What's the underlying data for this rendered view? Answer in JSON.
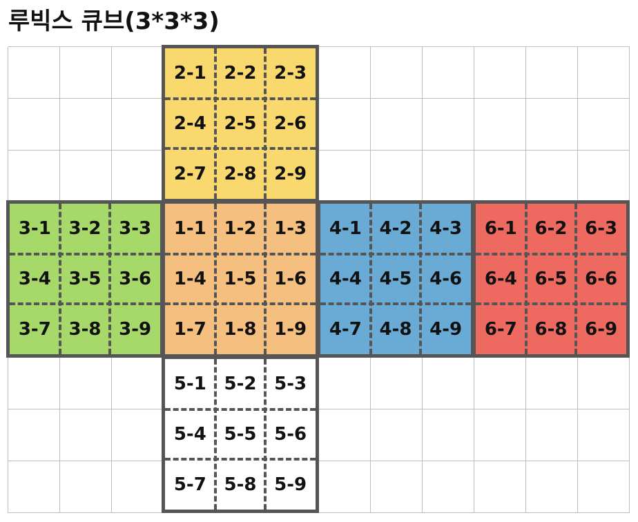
{
  "title": "루빅스 큐브(3*3*3)",
  "colors": {
    "grid_line": "#bdbdbd",
    "face_border": "#555555",
    "face_1": "#f5c07f",
    "face_2": "#f9d86e",
    "face_3": "#a7d86a",
    "face_4": "#6aabd6",
    "face_5": "#ffffff",
    "face_6": "#ee6a61"
  },
  "faces": [
    {
      "id": 2,
      "color_key": "face_2",
      "labels": [
        "2-1",
        "2-2",
        "2-3",
        "2-4",
        "2-5",
        "2-6",
        "2-7",
        "2-8",
        "2-9"
      ]
    },
    {
      "id": 3,
      "color_key": "face_3",
      "labels": [
        "3-1",
        "3-2",
        "3-3",
        "3-4",
        "3-5",
        "3-6",
        "3-7",
        "3-8",
        "3-9"
      ]
    },
    {
      "id": 1,
      "color_key": "face_1",
      "labels": [
        "1-1",
        "1-2",
        "1-3",
        "1-4",
        "1-5",
        "1-6",
        "1-7",
        "1-8",
        "1-9"
      ]
    },
    {
      "id": 4,
      "color_key": "face_4",
      "labels": [
        "4-1",
        "4-2",
        "4-3",
        "4-4",
        "4-5",
        "4-6",
        "4-7",
        "4-8",
        "4-9"
      ]
    },
    {
      "id": 6,
      "color_key": "face_6",
      "labels": [
        "6-1",
        "6-2",
        "6-3",
        "6-4",
        "6-5",
        "6-6",
        "6-7",
        "6-8",
        "6-9"
      ]
    },
    {
      "id": 5,
      "color_key": "face_5",
      "labels": [
        "5-1",
        "5-2",
        "5-3",
        "5-4",
        "5-5",
        "5-6",
        "5-7",
        "5-8",
        "5-9"
      ]
    }
  ]
}
